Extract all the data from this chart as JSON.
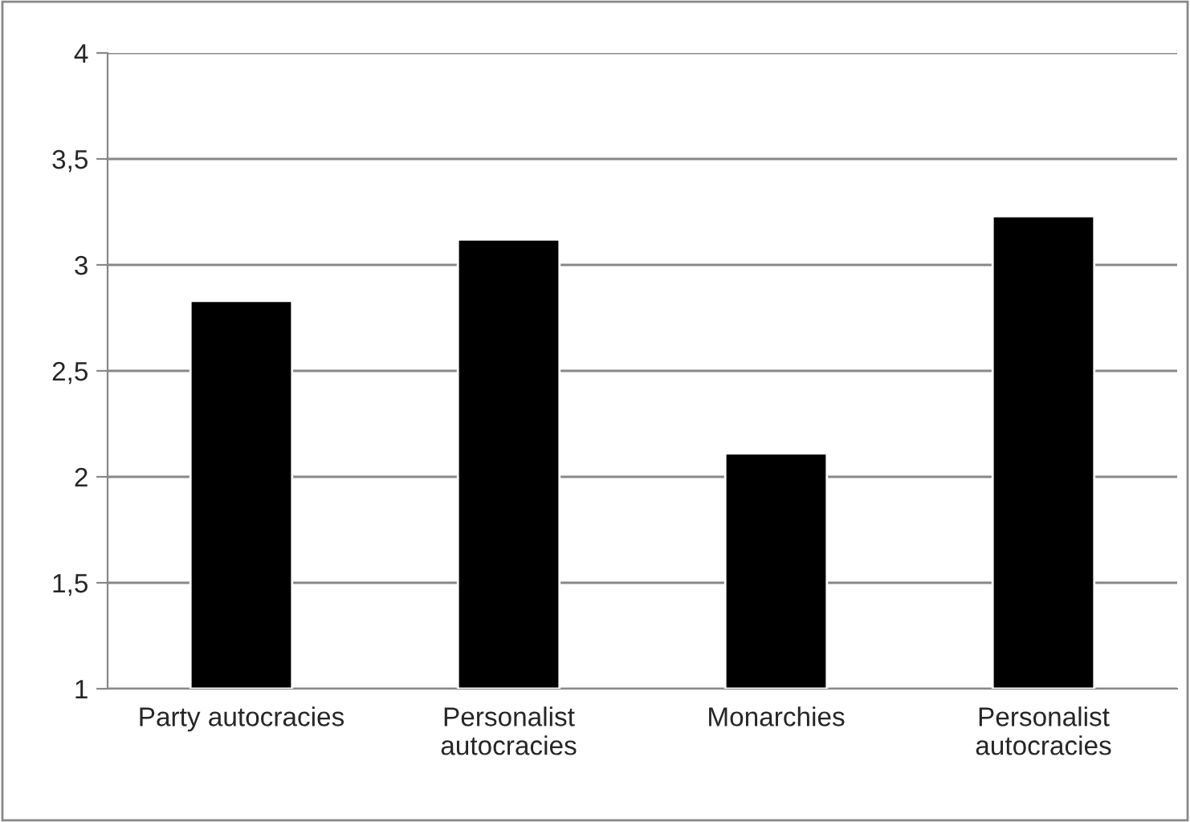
{
  "chart_data": {
    "type": "bar",
    "categories": [
      "Party autocracies",
      "Personalist\nautocracies",
      "Monarchies",
      "Personalist\nautocracies"
    ],
    "values": [
      2.83,
      3.12,
      2.11,
      3.23
    ],
    "color": "#000000",
    "ylim": [
      1,
      4
    ],
    "yticks": [
      1,
      {
        "value": 1.5,
        "label": "1,5"
      },
      2,
      {
        "value": 2.5,
        "label": "2,5"
      },
      3,
      {
        "value": 3.5,
        "label": "3,5"
      },
      4
    ],
    "grid": "y",
    "legend": false
  }
}
